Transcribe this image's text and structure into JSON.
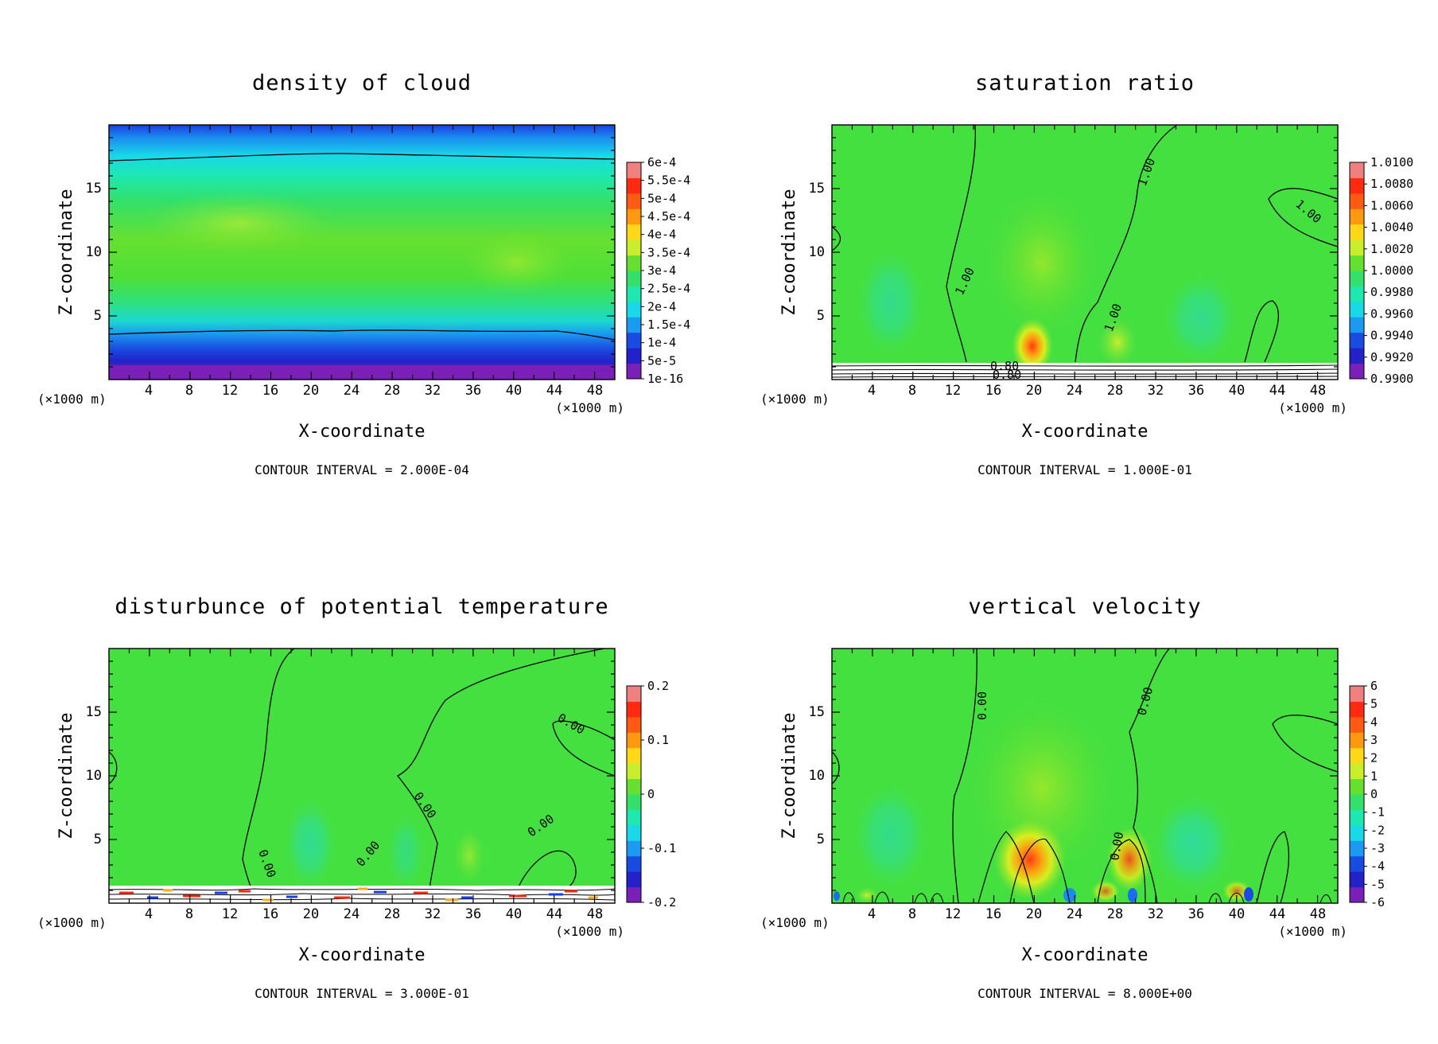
{
  "chart_data": [
    {
      "type": "heatmap",
      "title": "density of cloud",
      "xlabel": "X-coordinate",
      "ylabel": "Z-coordinate",
      "x_unit": "(×1000 m)",
      "x_unit_end": "(×1000 m)",
      "xlim": [
        0,
        50
      ],
      "ylim": [
        0,
        20
      ],
      "x_ticks": [
        "4",
        "8",
        "12",
        "16",
        "20",
        "24",
        "28",
        "32",
        "36",
        "40",
        "44",
        "48"
      ],
      "y_ticks": [
        "5",
        "10",
        "15"
      ],
      "colorbar": [
        "1e-16",
        "5e-5",
        "1e-4",
        "1.5e-4",
        "2e-4",
        "2.5e-4",
        "3e-4",
        "3.5e-4",
        "4e-4",
        "4.5e-4",
        "5e-4",
        "5.5e-4",
        "6e-4"
      ],
      "contour_interval": "CONTOUR INTERVAL = 2.000E-04",
      "contour_labels": []
    },
    {
      "type": "heatmap",
      "title": "saturation ratio",
      "xlabel": "X-coordinate",
      "ylabel": "Z-coordinate",
      "x_unit": "(×1000 m)",
      "x_unit_end": "(×1000 m)",
      "xlim": [
        0,
        50
      ],
      "ylim": [
        0,
        20
      ],
      "x_ticks": [
        "4",
        "8",
        "12",
        "16",
        "20",
        "24",
        "28",
        "32",
        "36",
        "40",
        "44",
        "48"
      ],
      "y_ticks": [
        "5",
        "10",
        "15"
      ],
      "colorbar": [
        "0.9900",
        "0.9920",
        "0.9940",
        "0.9960",
        "0.9980",
        "1.0000",
        "1.0020",
        "1.0040",
        "1.0060",
        "1.0080",
        "1.0100"
      ],
      "contour_interval": "CONTOUR INTERVAL = 1.000E-01",
      "contour_labels": [
        "1.00",
        "1.00",
        "1.00",
        "1.00",
        "0.80",
        "0.80"
      ]
    },
    {
      "type": "heatmap",
      "title": "disturbunce of potential temperature",
      "xlabel": "X-coordinate",
      "ylabel": "Z-coordinate",
      "x_unit": "(×1000 m)",
      "x_unit_end": "(×1000 m)",
      "xlim": [
        0,
        50
      ],
      "ylim": [
        0,
        20
      ],
      "x_ticks": [
        "4",
        "8",
        "12",
        "16",
        "20",
        "24",
        "28",
        "32",
        "36",
        "40",
        "44",
        "48"
      ],
      "y_ticks": [
        "5",
        "10",
        "15"
      ],
      "colorbar": [
        "-0.2",
        "-0.1",
        "0",
        "0.1",
        "0.2"
      ],
      "contour_interval": "CONTOUR INTERVAL = 3.000E-01",
      "contour_labels": [
        "0.00",
        "0.00",
        "0.00",
        "0.00",
        "0.00"
      ]
    },
    {
      "type": "heatmap",
      "title": "vertical velocity",
      "xlabel": "X-coordinate",
      "ylabel": "Z-coordinate",
      "x_unit": "(×1000 m)",
      "x_unit_end": "(×1000 m)",
      "xlim": [
        0,
        50
      ],
      "ylim": [
        0,
        20
      ],
      "x_ticks": [
        "4",
        "8",
        "12",
        "16",
        "20",
        "24",
        "28",
        "32",
        "36",
        "40",
        "44",
        "48"
      ],
      "y_ticks": [
        "5",
        "10",
        "15"
      ],
      "colorbar": [
        "-6",
        "-5",
        "-4",
        "-3",
        "-2",
        "-1",
        "0",
        "1",
        "2",
        "3",
        "4",
        "5",
        "6"
      ],
      "contour_interval": "CONTOUR INTERVAL = 8.000E+00",
      "contour_labels": [
        "0.00",
        "0.00",
        "0.00"
      ]
    }
  ]
}
